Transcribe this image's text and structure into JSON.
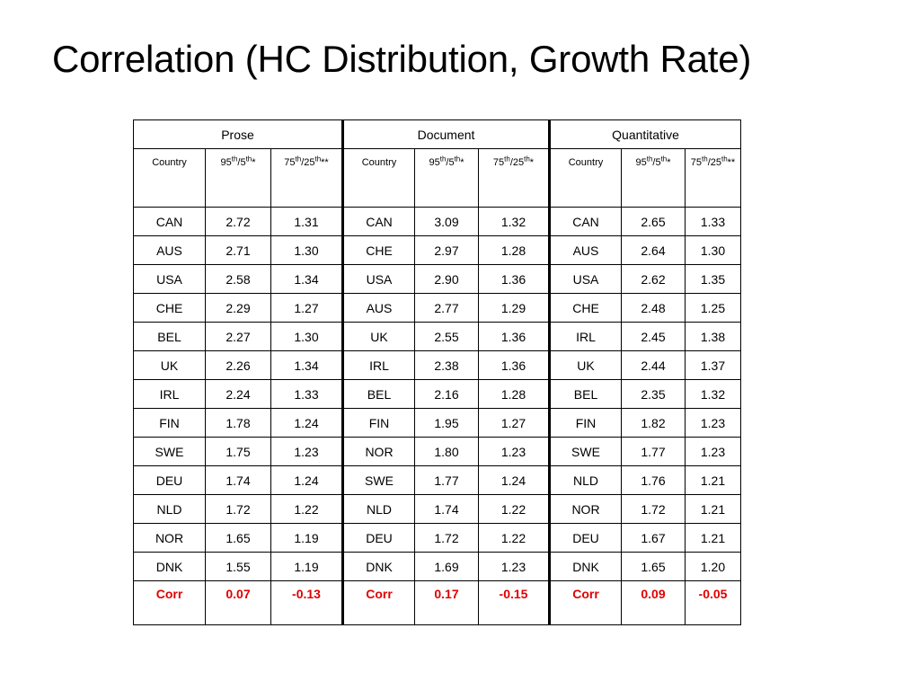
{
  "slide": {
    "title": "Correlation (HC Distribution, Growth Rate)"
  },
  "table": {
    "groups": [
      {
        "label": "Prose"
      },
      {
        "label": "Document"
      },
      {
        "label": "Quantitative"
      }
    ],
    "subheaders": [
      {
        "main": "Country"
      },
      {
        "pre1": "95",
        "sup1": "th",
        "mid": "/5",
        "sup2": "th",
        "post": "*"
      },
      {
        "pre1": "75",
        "sup1": "th",
        "mid": "/25",
        "sup2": "th",
        "post": "**"
      },
      {
        "main": "Country"
      },
      {
        "pre1": "95",
        "sup1": "th",
        "mid": "/5",
        "sup2": "th",
        "post": "*"
      },
      {
        "pre1": "75",
        "sup1": "th",
        "mid": "/25",
        "sup2": "th",
        "post": "*"
      },
      {
        "main": "Country"
      },
      {
        "pre1": "95",
        "sup1": "th",
        "mid": "/5",
        "sup2": "th",
        "post": "*"
      },
      {
        "pre1": "75",
        "sup1": "th",
        "mid": "/25",
        "sup2": "th",
        "post": "**"
      }
    ],
    "rows": [
      [
        "CAN",
        "2.72",
        "1.31",
        "CAN",
        "3.09",
        "1.32",
        "CAN",
        "2.65",
        "1.33"
      ],
      [
        "AUS",
        "2.71",
        "1.30",
        "CHE",
        "2.97",
        "1.28",
        "AUS",
        "2.64",
        "1.30"
      ],
      [
        "USA",
        "2.58",
        "1.34",
        "USA",
        "2.90",
        "1.36",
        "USA",
        "2.62",
        "1.35"
      ],
      [
        "CHE",
        "2.29",
        "1.27",
        "AUS",
        "2.77",
        "1.29",
        "CHE",
        "2.48",
        "1.25"
      ],
      [
        "BEL",
        "2.27",
        "1.30",
        "UK",
        "2.55",
        "1.36",
        "IRL",
        "2.45",
        "1.38"
      ],
      [
        "UK",
        "2.26",
        "1.34",
        "IRL",
        "2.38",
        "1.36",
        "UK",
        "2.44",
        "1.37"
      ],
      [
        "IRL",
        "2.24",
        "1.33",
        "BEL",
        "2.16",
        "1.28",
        "BEL",
        "2.35",
        "1.32"
      ],
      [
        "FIN",
        "1.78",
        "1.24",
        "FIN",
        "1.95",
        "1.27",
        "FIN",
        "1.82",
        "1.23"
      ],
      [
        "SWE",
        "1.75",
        "1.23",
        "NOR",
        "1.80",
        "1.23",
        "SWE",
        "1.77",
        "1.23"
      ],
      [
        "DEU",
        "1.74",
        "1.24",
        "SWE",
        "1.77",
        "1.24",
        "NLD",
        "1.76",
        "1.21"
      ],
      [
        "NLD",
        "1.72",
        "1.22",
        "NLD",
        "1.74",
        "1.22",
        "NOR",
        "1.72",
        "1.21"
      ],
      [
        "NOR",
        "1.65",
        "1.19",
        "DEU",
        "1.72",
        "1.22",
        "DEU",
        "1.67",
        "1.21"
      ],
      [
        "DNK",
        "1.55",
        "1.19",
        "DNK",
        "1.69",
        "1.23",
        "DNK",
        "1.65",
        "1.20"
      ]
    ],
    "corr_row": [
      "Corr",
      "0.07",
      "-0.13",
      "Corr",
      "0.17",
      "-0.15",
      "Corr",
      "0.09",
      "-0.05"
    ],
    "corr_color": "#e00000"
  }
}
